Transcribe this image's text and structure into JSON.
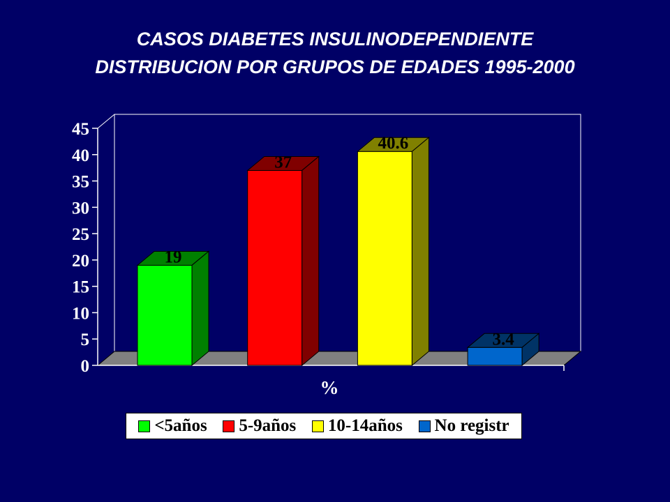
{
  "title_lines": [
    "CASOS DIABETES INSULINODEPENDIENTE",
    "DISTRIBUCION POR GRUPOS DE EDADES 1995-2000"
  ],
  "chart_data": {
    "type": "bar",
    "title": "CASOS DIABETES INSULINODEPENDIENTE DISTRIBUCION POR GRUPOS DE EDADES 1995-2000",
    "categories": [
      "%"
    ],
    "xlabel": "%",
    "ylabel": "",
    "ylim": [
      0,
      45
    ],
    "yticks": [
      0,
      5,
      10,
      15,
      20,
      25,
      30,
      35,
      40,
      45
    ],
    "grid": false,
    "legend_position": "bottom",
    "series": [
      {
        "name": "<5años",
        "values": [
          19
        ],
        "label": "19",
        "color": "#00ff00",
        "side_color": "#008000"
      },
      {
        "name": "5-9años",
        "values": [
          37
        ],
        "label": "37",
        "color": "#ff0000",
        "side_color": "#800000"
      },
      {
        "name": "10-14años",
        "values": [
          40.6
        ],
        "label": "40.6",
        "color": "#ffff00",
        "side_color": "#808000"
      },
      {
        "name": "No registr",
        "values": [
          3.4
        ],
        "label": "3.4",
        "color": "#0066cc",
        "side_color": "#003366"
      }
    ]
  },
  "colors": {
    "background": "#000066",
    "plot_back": "#000066",
    "floor": "#808080",
    "text": "#ffffff"
  }
}
